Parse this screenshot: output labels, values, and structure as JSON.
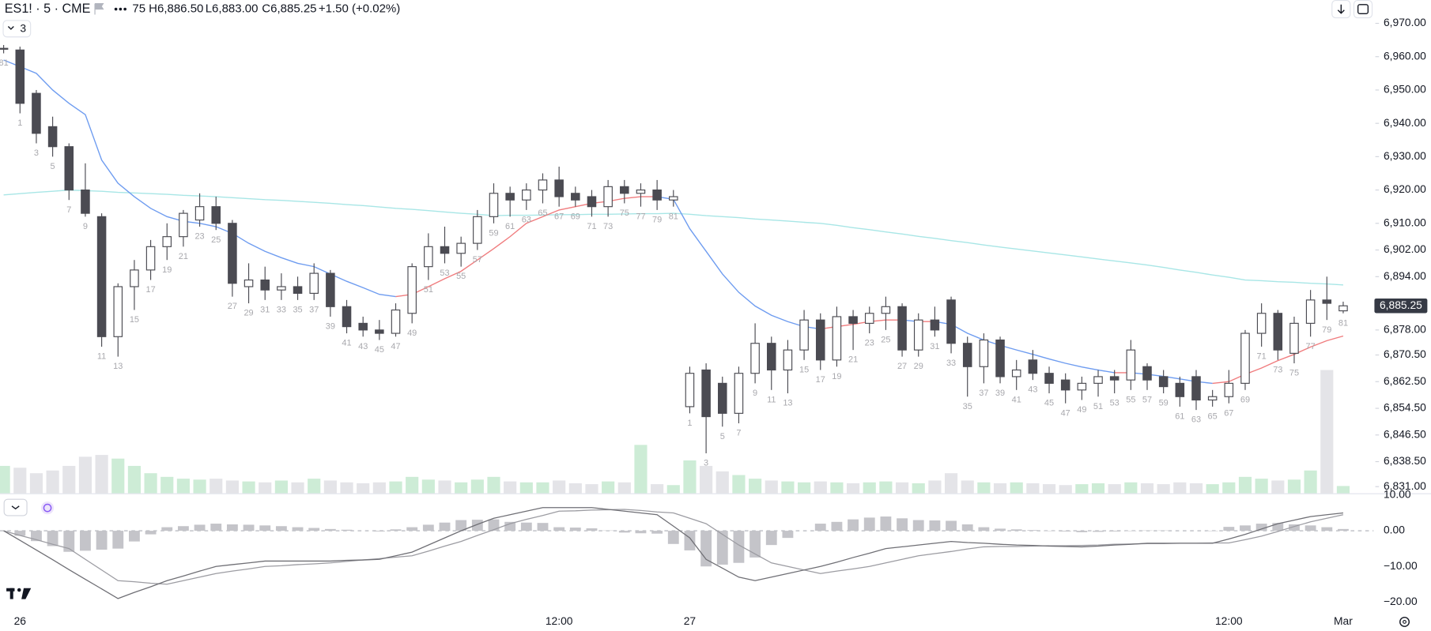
{
  "chart_data": {
    "type": "candlestick",
    "title": "ES1! · 5 · CME",
    "open_fragment": "75",
    "header_values": [
      {
        "key": "H",
        "value": "6,886.50"
      },
      {
        "key": "L",
        "value": "6,883.00"
      },
      {
        "key": "C",
        "value": "6,885.25"
      }
    ],
    "change": "+1.50 (+0.02%)",
    "indicator_count": "3",
    "grid": false,
    "categories": [
      null,
      "26",
      null,
      null,
      null,
      null,
      null,
      null,
      null,
      null,
      null,
      null,
      null,
      null,
      null,
      null,
      null,
      null,
      null,
      null,
      null,
      null,
      null,
      null,
      null,
      null,
      null,
      null,
      null,
      null,
      null,
      null,
      null,
      null,
      "12:00",
      null,
      null,
      null,
      null,
      null,
      null,
      null,
      "27",
      null,
      null,
      null,
      null,
      null,
      null,
      null,
      null,
      null,
      null,
      null,
      null,
      null,
      null,
      null,
      null,
      null,
      null,
      null,
      null,
      null,
      null,
      null,
      null,
      null,
      null,
      null,
      null,
      null,
      null,
      null,
      null,
      "12:00",
      null,
      null,
      null,
      null,
      null,
      null,
      "Mar"
    ],
    "open": [
      6962.5,
      6962,
      6949,
      6939,
      6933,
      6920,
      6912,
      6876,
      6891,
      6896,
      6903,
      6906,
      6911,
      6915,
      6910,
      6891,
      6893,
      6890,
      6891,
      6889,
      6895,
      6885,
      6880,
      6878,
      6877,
      6883,
      6897,
      6903,
      6901,
      6904,
      6912,
      6919,
      6917,
      6920,
      6923,
      6919,
      6918,
      6915,
      6921,
      6919,
      6920,
      6917,
      6855,
      6866,
      6862,
      6853,
      6865,
      6874,
      6866,
      6872,
      6881,
      6869,
      6882,
      6880,
      6883,
      6885,
      6872,
      6881,
      6887,
      6874,
      6867,
      6875,
      6864,
      6869,
      6865,
      6863,
      6860,
      6862,
      6864,
      6863,
      6867,
      6864,
      6862,
      6864,
      6857,
      6858,
      6862,
      6877,
      6883,
      6871,
      6880,
      6887,
      6883.75
    ],
    "high": [
      6963.5,
      6963,
      6950,
      6942,
      6934,
      6928,
      6913,
      6892,
      6899,
      6905,
      6910,
      6914,
      6919,
      6918,
      6911,
      6898,
      6897,
      6895,
      6894,
      6898,
      6896,
      6887,
      6882,
      6881,
      6886,
      6898,
      6907,
      6909,
      6906,
      6914,
      6922,
      6921,
      6922,
      6925,
      6927,
      6921,
      6920,
      6923,
      6923,
      6922,
      6923,
      6920,
      6867,
      6868,
      6864,
      6867,
      6880,
      6876,
      6875,
      6884,
      6883,
      6885,
      6884,
      6885,
      6888,
      6886,
      6883,
      6885,
      6888,
      6876,
      6877,
      6876,
      6869,
      6872,
      6867,
      6865,
      6864,
      6866,
      6866,
      6875,
      6868,
      6866,
      6864,
      6866,
      6860,
      6866,
      6878,
      6886,
      6884,
      6882,
      6890,
      6894,
      6886.5
    ],
    "low": [
      6961,
      6943,
      6934,
      6930,
      6917,
      6912,
      6873,
      6870,
      6884,
      6893,
      6899,
      6903,
      6909,
      6908,
      6888,
      6886,
      6887,
      6887,
      6887,
      6887,
      6882,
      6877,
      6876,
      6875,
      6876,
      6880,
      6893,
      6898,
      6897,
      6902,
      6910,
      6912,
      6914,
      6916,
      6915,
      6915,
      6912,
      6912,
      6916,
      6915,
      6914,
      6915,
      6853,
      6841,
      6849,
      6850,
      6862,
      6860,
      6859,
      6869,
      6866,
      6867,
      6872,
      6877,
      6878,
      6870,
      6870,
      6876,
      6871,
      6858,
      6862,
      6862,
      6860,
      6863,
      6859,
      6856,
      6857,
      6858,
      6859,
      6860,
      6860,
      6859,
      6855,
      6854,
      6855,
      6856,
      6860,
      6873,
      6869,
      6868,
      6876,
      6881,
      6883
    ],
    "close": [
      6962.5,
      6946,
      6937,
      6933,
      6920,
      6913,
      6876,
      6891,
      6896,
      6903,
      6906,
      6913,
      6915,
      6910,
      6892,
      6893,
      6890,
      6891,
      6889,
      6895,
      6885,
      6879,
      6878,
      6877,
      6884,
      6897,
      6903,
      6901,
      6904,
      6912,
      6919,
      6917,
      6920,
      6923,
      6918,
      6917,
      6915,
      6921,
      6919,
      6920,
      6917,
      6918,
      6865,
      6852,
      6853,
      6865,
      6874,
      6866,
      6872,
      6881,
      6869,
      6882,
      6880,
      6883,
      6885,
      6872,
      6881,
      6878,
      6874,
      6867,
      6875,
      6864,
      6866,
      6865,
      6862,
      6860,
      6862,
      6864,
      6863,
      6872,
      6863,
      6861,
      6858,
      6857,
      6858,
      6862,
      6877,
      6883,
      6872,
      6880,
      6887,
      6886,
      6885.25
    ],
    "bar_counts": [
      81,
      1,
      3,
      5,
      7,
      9,
      11,
      13,
      15,
      17,
      19,
      21,
      23,
      25,
      27,
      29,
      31,
      33,
      35,
      37,
      39,
      41,
      43,
      45,
      47,
      49,
      51,
      53,
      55,
      57,
      59,
      61,
      63,
      65,
      67,
      69,
      71,
      73,
      75,
      77,
      79,
      81,
      1,
      3,
      5,
      7,
      9,
      11,
      13,
      15,
      17,
      19,
      21,
      23,
      25,
      27,
      29,
      31,
      33,
      35,
      37,
      39,
      41,
      43,
      45,
      47,
      49,
      51,
      53,
      55,
      57,
      59,
      61,
      63,
      65,
      67,
      69,
      71,
      73,
      75,
      77,
      79,
      81
    ],
    "last_price_label": "6,885.25",
    "up_color": "#ffffff",
    "down_color": "#4b4b52",
    "wick_color": "#4b4b52",
    "ylim": [
      6829,
      6977
    ],
    "yticks": [
      {
        "value": 6970,
        "label": "6,970.00"
      },
      {
        "value": 6960,
        "label": "6,960.00"
      },
      {
        "value": 6950,
        "label": "6,950.00"
      },
      {
        "value": 6940,
        "label": "6,940.00"
      },
      {
        "value": 6930,
        "label": "6,930.00"
      },
      {
        "value": 6920,
        "label": "6,920.00"
      },
      {
        "value": 6910,
        "label": "6,910.00"
      },
      {
        "value": 6902,
        "label": "6,902.00"
      },
      {
        "value": 6894,
        "label": "6,894.00"
      },
      {
        "value": 6878,
        "label": "6,878.00"
      },
      {
        "value": 6870.5,
        "label": "6,870.50"
      },
      {
        "value": 6862.5,
        "label": "6,862.50"
      },
      {
        "value": 6854.5,
        "label": "6,854.50"
      },
      {
        "value": 6846.5,
        "label": "6,846.50"
      },
      {
        "value": 6838.5,
        "label": "6,838.50"
      },
      {
        "value": 6831,
        "label": "6,831.00"
      }
    ],
    "volume": {
      "ylim": [
        0,
        540
      ],
      "up_color": "#cdecd6",
      "down_color": "#e4e4e8",
      "values": [
        30,
        28,
        22,
        25,
        30,
        40,
        42,
        38,
        30,
        22,
        18,
        16,
        15,
        16,
        14,
        13,
        12,
        14,
        12,
        16,
        14,
        12,
        11,
        12,
        13,
        18,
        15,
        14,
        12,
        15,
        18,
        13,
        12,
        12,
        14,
        11,
        10,
        13,
        12,
        53,
        10,
        9,
        36,
        30,
        24,
        20,
        16,
        14,
        13,
        12,
        13,
        12,
        11,
        12,
        13,
        12,
        11,
        14,
        22,
        14,
        12,
        11,
        12,
        11,
        10,
        9,
        10,
        11,
        10,
        12,
        11,
        10,
        12,
        11,
        10,
        12,
        18,
        16,
        14,
        15,
        25,
        135,
        8
      ]
    },
    "moving_averages": [
      {
        "color": "#a8e6e6",
        "values": [
          6918.5,
          6918.9,
          6919.3,
          6919.6,
          6920,
          6919.8,
          6919.6,
          6919.3,
          6919.1,
          6918.9,
          6918.7,
          6918.4,
          6918.2,
          6918,
          6917.7,
          6917.4,
          6917.1,
          6916.9,
          6916.6,
          6916.3,
          6916,
          6915.6,
          6915.3,
          6914.9,
          6914.5,
          6914.2,
          6913.8,
          6913.4,
          6913,
          6912.7,
          6912.3,
          6912.4,
          6912.4,
          6912.5,
          6912.6,
          6912.6,
          6912.7,
          6912.7,
          6912.8,
          6912.9,
          6912.9,
          6913,
          6912.7,
          6912.3,
          6912,
          6911.7,
          6911.3,
          6911,
          6910.7,
          6910.3,
          6910,
          6909.4,
          6908.7,
          6908.1,
          6907.4,
          6906.8,
          6906.1,
          6905.5,
          6904.8,
          6904.2,
          6903.5,
          6902.9,
          6902.3,
          6901.7,
          6901.1,
          6900.5,
          6899.9,
          6899.3,
          6898.7,
          6898.1,
          6897.5,
          6896.8,
          6896,
          6895.3,
          6894.5,
          6893.8,
          6893,
          6892.8,
          6892.5,
          6892.3,
          6892,
          6891.8,
          6891.5
        ]
      },
      {
        "rising_color": "#f07c7e",
        "falling_color": "#6e9cf0",
        "values": [
          6959,
          6957,
          6955,
          6950,
          6946,
          6942.6,
          6929,
          6922,
          6918,
          6914.5,
          6912,
          6910.6,
          6910,
          6909,
          6907,
          6904,
          6901.6,
          6899.7,
          6898,
          6897,
          6894.8,
          6892.6,
          6890.7,
          6888.7,
          6888,
          6888.7,
          6891,
          6893.4,
          6895.6,
          6899,
          6902.4,
          6906,
          6910,
          6912,
          6914,
          6915,
          6916,
          6916.6,
          6917.5,
          6918,
          6918,
          6917.2,
          6908.4,
          6901.6,
          6894.8,
          6889.3,
          6885.2,
          6882.4,
          6880.5,
          6879,
          6878.3,
          6879,
          6879.7,
          6880.5,
          6881,
          6881,
          6880.5,
          6880.5,
          6879.7,
          6877,
          6875,
          6873.4,
          6872,
          6870.7,
          6869.3,
          6868,
          6866.9,
          6866,
          6865.2,
          6865.2,
          6864.7,
          6864.1,
          6863.3,
          6862.5,
          6862,
          6862.5,
          6864.7,
          6866.6,
          6868.8,
          6870.7,
          6872.9,
          6874.8,
          6876.2
        ]
      }
    ],
    "macd": {
      "ylim": [
        -23,
        10
      ],
      "yticks": [
        {
          "value": 10,
          "label": "10.00"
        },
        {
          "value": 0,
          "label": "0.00"
        },
        {
          "value": -10,
          "label": "−10.00"
        },
        {
          "value": -20,
          "label": "−20.00"
        }
      ],
      "zero_line": true,
      "macd_color": "#6f6f75",
      "signal_color": "#9c9ca2",
      "histogram_color": "#c4c4c9",
      "macd": [
        0,
        -2.7,
        -5.4,
        -8.1,
        -10.9,
        -13.6,
        -16.3,
        -19,
        -17.3,
        -15.7,
        -14,
        -12.7,
        -11.3,
        -10,
        -9.5,
        -9,
        -8.5,
        -8.5,
        -8.5,
        -8.5,
        -8.5,
        -8.3,
        -8.2,
        -8,
        -7,
        -6,
        -4,
        -2,
        0,
        1.8,
        3.5,
        4.5,
        5.5,
        6.5,
        6.5,
        6.5,
        6.5,
        6,
        5.5,
        5,
        4.5,
        1.3,
        -2,
        -8,
        -10.5,
        -13,
        -14,
        -13,
        -12,
        -11,
        -10,
        -8.8,
        -7.5,
        -6.3,
        -5,
        -4.5,
        -4,
        -3.5,
        -3,
        -3.3,
        -3.5,
        -3.8,
        -4,
        -4.1,
        -4.3,
        -4.4,
        -4.5,
        -4.3,
        -4,
        -3.8,
        -3.5,
        -3.5,
        -3.5,
        -3.5,
        -3.5,
        -2.3,
        -1,
        0.5,
        2,
        3,
        4,
        4.5,
        5
      ],
      "signal": [
        0,
        -1.3,
        -2.5,
        -3.8,
        -5,
        -8,
        -11,
        -14,
        -14.3,
        -14.7,
        -15,
        -14,
        -13,
        -12,
        -11.3,
        -10.7,
        -10,
        -9.8,
        -9.5,
        -9.3,
        -9,
        -8.6,
        -8.2,
        -7.8,
        -7.4,
        -7,
        -5.7,
        -4.3,
        -3,
        -1.3,
        0.3,
        2,
        3.2,
        4.3,
        5.5,
        5.6,
        5.8,
        5.9,
        6,
        5.7,
        5.3,
        5,
        3.5,
        2,
        -1,
        -4,
        -6.5,
        -9,
        -10,
        -11,
        -12,
        -11.3,
        -10.7,
        -10,
        -9,
        -8,
        -7,
        -6.4,
        -5.8,
        -5.1,
        -4.5,
        -4.4,
        -4.4,
        -4.3,
        -4.2,
        -4.2,
        -4.1,
        -4,
        -3.8,
        -3.7,
        -3.6,
        -3.6,
        -3.5,
        -3.5,
        -3.4,
        -3.4,
        -2.5,
        -1.5,
        -0.2,
        1.2,
        2.5,
        3.5,
        4.5
      ],
      "histogram": [
        0,
        -1.4,
        -2.9,
        -4.3,
        -5.9,
        -5.6,
        -5.3,
        -5,
        -3,
        -1,
        1,
        1.3,
        1.7,
        2,
        1.8,
        1.7,
        1.5,
        1.3,
        1,
        0.8,
        0.5,
        0.3,
        0,
        -0.2,
        0.4,
        1,
        1.7,
        2.3,
        3,
        3.1,
        3.2,
        2.5,
        2.3,
        2.2,
        1,
        0.9,
        0.7,
        0.1,
        -0.5,
        -0.7,
        -0.8,
        -3.7,
        -5.5,
        -10,
        -9.5,
        -9,
        -7.5,
        -4,
        -2,
        0,
        2,
        2.5,
        3.2,
        3.7,
        4,
        3.5,
        3,
        2.9,
        2.8,
        1.8,
        1,
        0.6,
        0.4,
        0.2,
        -0.1,
        -0.2,
        -0.4,
        -0.3,
        -0.2,
        -0.1,
        0.1,
        0.1,
        0,
        0,
        -0.1,
        1.1,
        1.5,
        2,
        2.2,
        1.8,
        1.5,
        1,
        0.5
      ]
    }
  }
}
